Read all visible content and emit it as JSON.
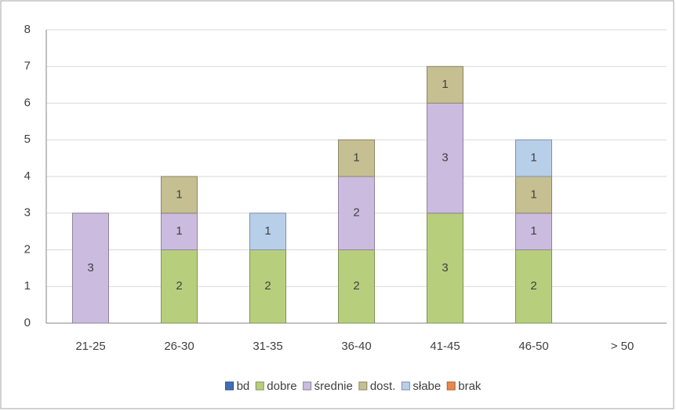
{
  "chart_data": {
    "type": "stacked_bar",
    "categories": [
      "21-25",
      "26-30",
      "31-35",
      "36-40",
      "41-45",
      "46-50",
      "> 50"
    ],
    "series": [
      {
        "name": "bd",
        "color": "#3f6fb5",
        "values": [
          null,
          null,
          null,
          null,
          null,
          null,
          null
        ]
      },
      {
        "name": "dobre",
        "color": "#b7cf7d",
        "values": [
          null,
          2,
          2,
          2,
          3,
          2,
          null
        ]
      },
      {
        "name": "średnie",
        "color": "#cbbbdf",
        "values": [
          3,
          1,
          null,
          2,
          3,
          1,
          null
        ]
      },
      {
        "name": "dost.",
        "color": "#c6bf92",
        "values": [
          null,
          1,
          null,
          1,
          1,
          1,
          null
        ]
      },
      {
        "name": "słabe",
        "color": "#b8cfe9",
        "values": [
          null,
          null,
          1,
          null,
          null,
          1,
          null
        ]
      },
      {
        "name": "brak",
        "color": "#e8894a",
        "values": [
          null,
          null,
          null,
          null,
          null,
          null,
          null
        ]
      }
    ],
    "ylim": [
      0,
      8
    ],
    "yticks": [
      0,
      1,
      2,
      3,
      4,
      5,
      6,
      7,
      8
    ],
    "grid": true,
    "legend": "bottom"
  }
}
